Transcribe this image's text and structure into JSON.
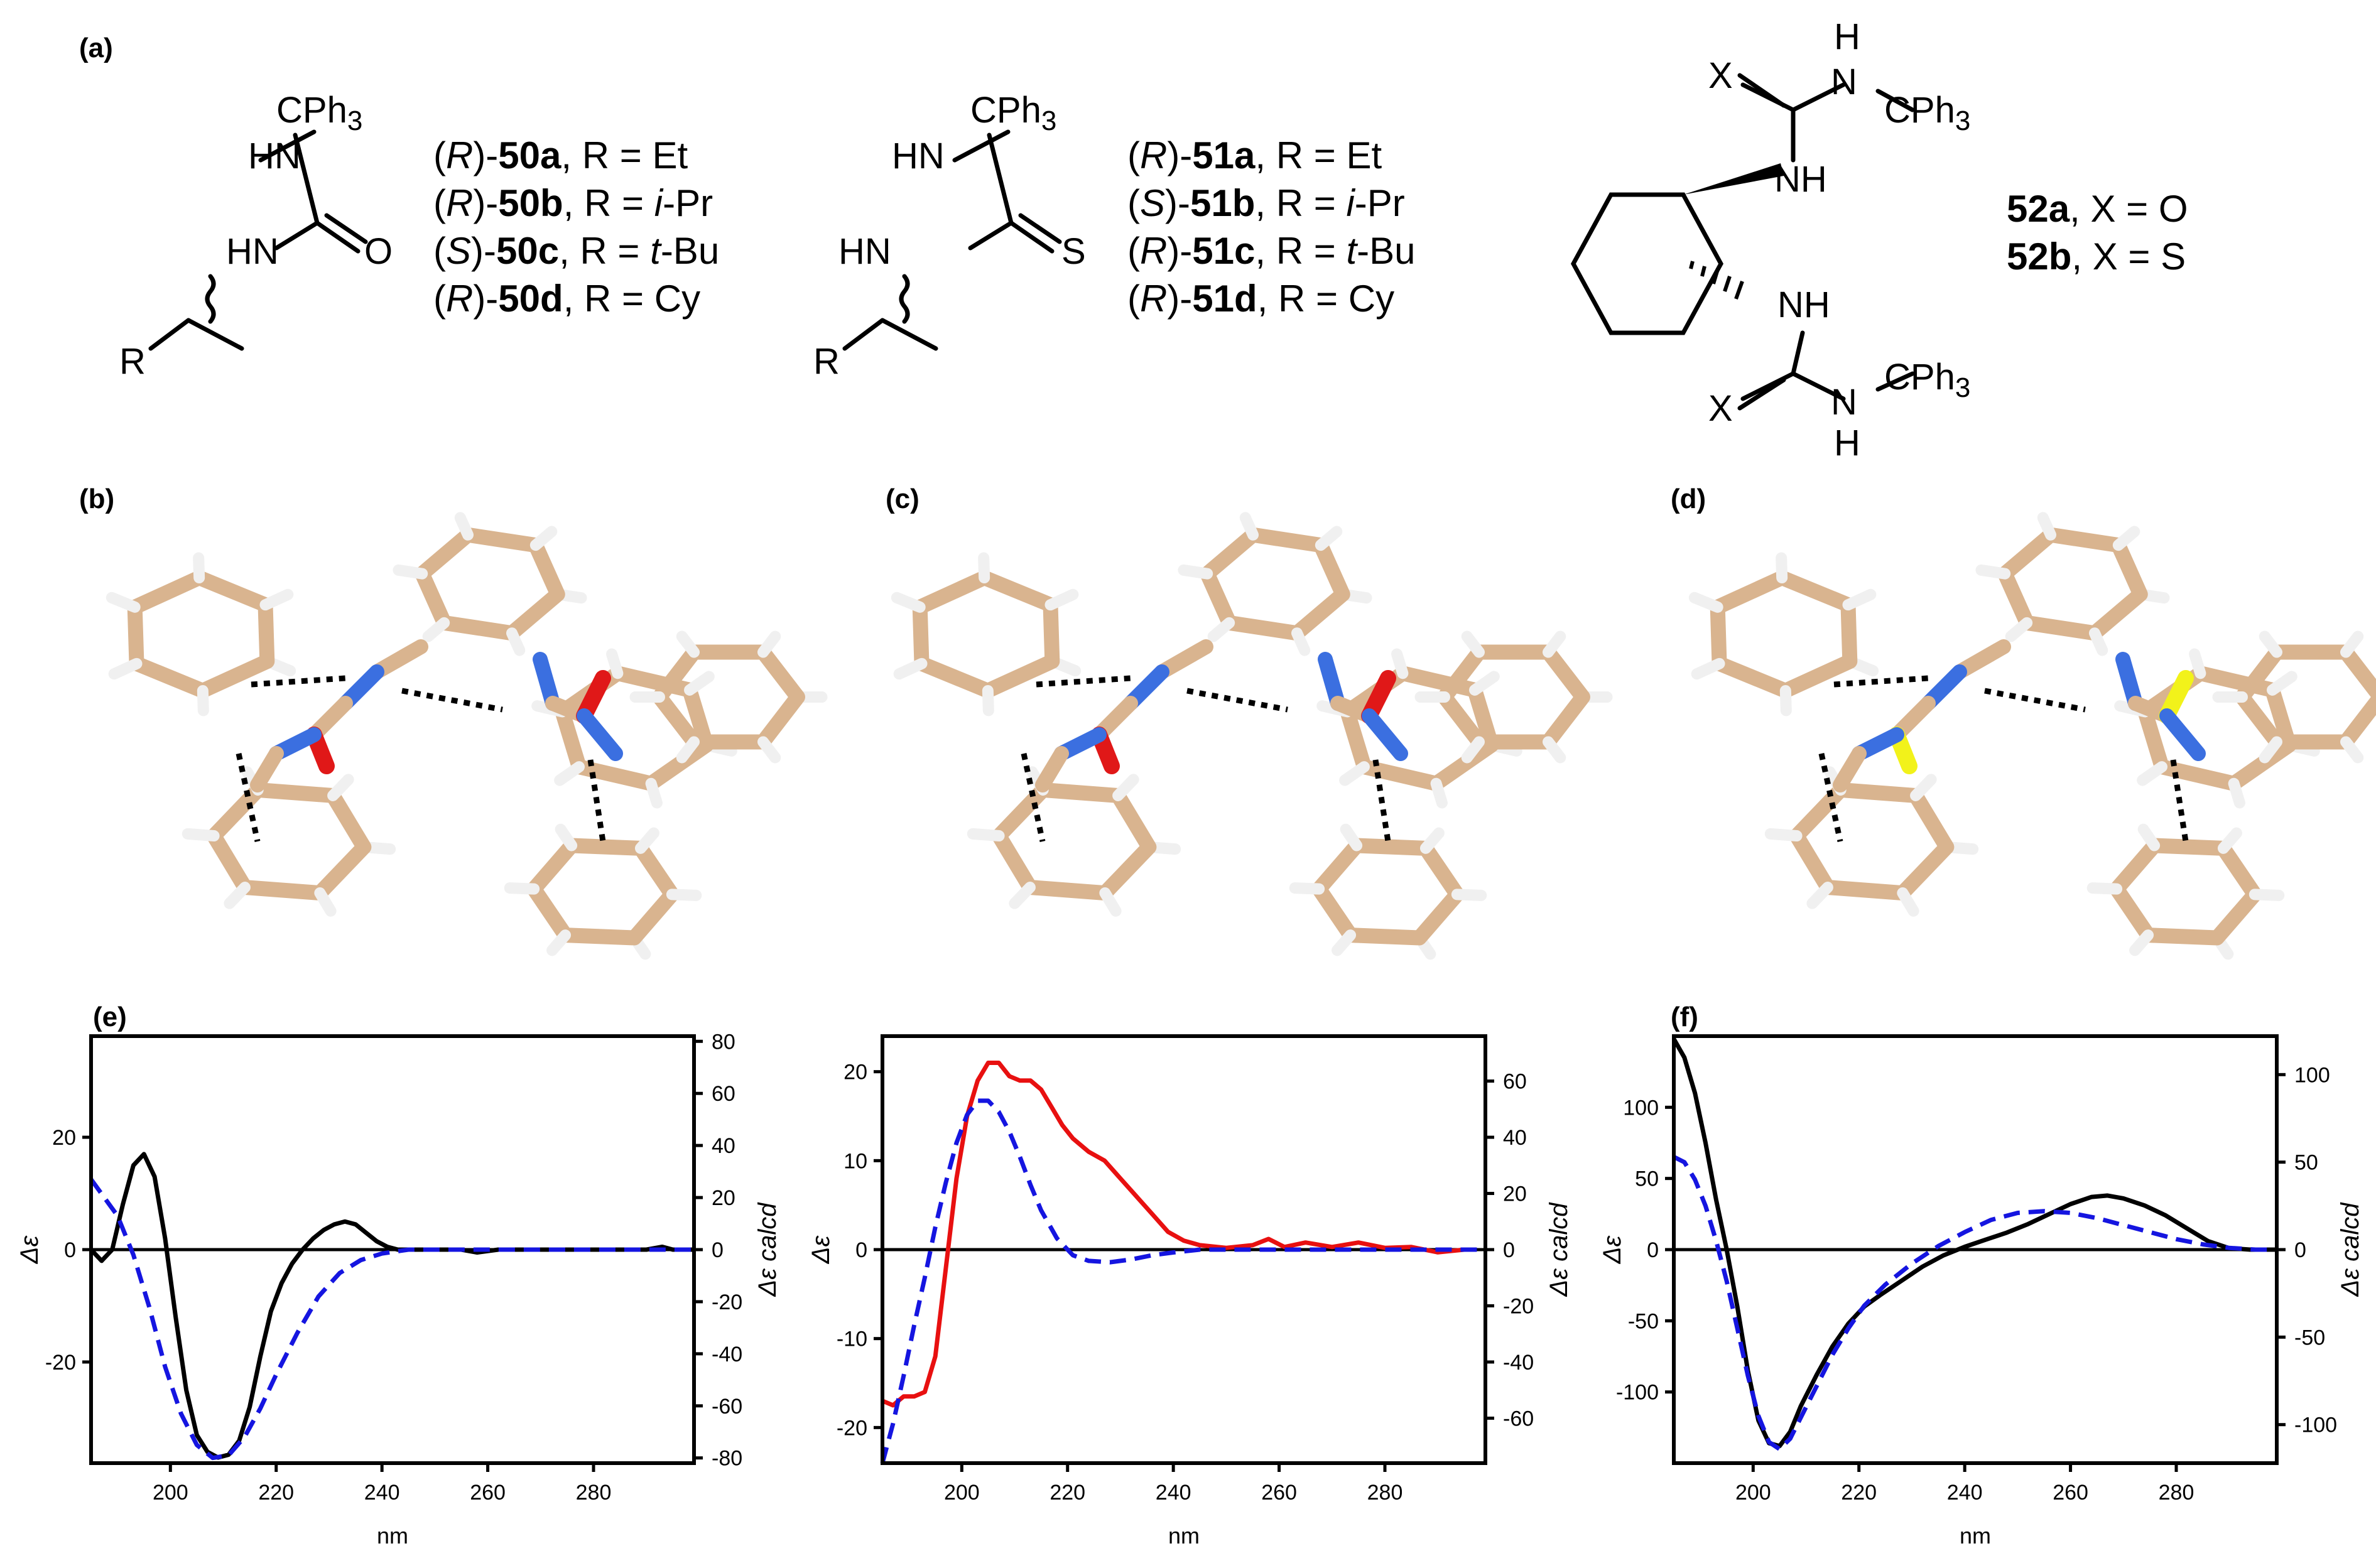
{
  "panels": {
    "a": "(a)",
    "b": "(b)",
    "c": "(c)",
    "d": "(d)",
    "e": "(e)",
    "f": "(f)"
  },
  "structure_a": {
    "atoms": {
      "cph3": "CPh3",
      "hn_top": "HN",
      "hn_bottom": "HN",
      "o": "O",
      "r": "R"
    },
    "compounds": [
      {
        "config": "R",
        "id": "50a",
        "rest": ", R = Et",
        "sub": ""
      },
      {
        "config": "R",
        "id": "50b",
        "rest": ", R = ",
        "sub": "i",
        "tail": "-Pr"
      },
      {
        "config": "S",
        "id": "50c",
        "rest": ", R = ",
        "sub": "t",
        "tail": "-Bu"
      },
      {
        "config": "R",
        "id": "50d",
        "rest": ", R = Cy",
        "sub": ""
      }
    ]
  },
  "structure_b": {
    "atoms": {
      "cph3": "CPh3",
      "hn_top": "HN",
      "hn_bottom": "HN",
      "s": "S",
      "r": "R"
    },
    "compounds": [
      {
        "config": "R",
        "id": "51a",
        "rest": ", R = Et",
        "sub": ""
      },
      {
        "config": "S",
        "id": "51b",
        "rest": ", R = ",
        "sub": "i",
        "tail": "-Pr"
      },
      {
        "config": "R",
        "id": "51c",
        "rest": ", R = ",
        "sub": "t",
        "tail": "-Bu"
      },
      {
        "config": "R",
        "id": "51d",
        "rest": ", R = Cy",
        "sub": ""
      }
    ]
  },
  "structure_c": {
    "atoms": {
      "h_top": "H",
      "n_top": "N",
      "cph3_top": "CPh3",
      "x_top": "X",
      "nh_top": "NH",
      "nh_bottom": "NH",
      "x_bottom": "X",
      "n_bottom": "N",
      "cph3_bottom": "CPh3",
      "h_bottom": "H"
    },
    "compounds": [
      {
        "id": "52a",
        "rest": ", X = O"
      },
      {
        "id": "52b",
        "rest": ", X = S"
      }
    ]
  },
  "colors": {
    "carbon": "#d9b48f",
    "nitrogen": "#3b6fe0",
    "oxygen": "#e01818",
    "sulfur": "#f2f21a",
    "hydrogen": "#f0f0f0",
    "exp_black": "#000000",
    "exp_red": "#e81010",
    "calc_blue": "#1515e0"
  },
  "chart_data": [
    {
      "type": "line",
      "panel": "(e)",
      "xlabel": "nm",
      "ylabel": "Δε",
      "y2label": "Δε calcd",
      "xlim": [
        185,
        299
      ],
      "ylim": [
        -38,
        38
      ],
      "y2lim": [
        -82,
        82
      ],
      "xticks": [
        200,
        220,
        240,
        260,
        280
      ],
      "yticks": [
        -20,
        0,
        20
      ],
      "y2ticks": [
        -80,
        -60,
        -40,
        -20,
        0,
        20,
        40,
        60,
        80
      ],
      "series": [
        {
          "axis": "left",
          "color": "#000000",
          "dash": false,
          "x": [
            185,
            187,
            189,
            191,
            193,
            195,
            197,
            199,
            201,
            203,
            205,
            207,
            209,
            211,
            213,
            215,
            217,
            219,
            221,
            223,
            225,
            227,
            229,
            231,
            233,
            235,
            237,
            239,
            241,
            243,
            245,
            250,
            255,
            258,
            262,
            270,
            280,
            285,
            290,
            293,
            295,
            299
          ],
          "y": [
            0,
            -2,
            0,
            8,
            15,
            17,
            13,
            2,
            -12,
            -25,
            -33,
            -36,
            -37,
            -36.5,
            -34,
            -28,
            -19,
            -11,
            -6,
            -2.5,
            0,
            2,
            3.5,
            4.5,
            5,
            4.5,
            3,
            1.5,
            0.5,
            0,
            0,
            0,
            0,
            -0.5,
            0,
            0,
            0,
            0,
            0,
            0.5,
            0,
            0
          ]
        },
        {
          "axis": "right",
          "color": "#1515e0",
          "dash": true,
          "x": [
            185,
            190,
            193,
            196,
            199,
            202,
            205,
            208,
            211,
            214,
            217,
            220,
            224,
            228,
            232,
            236,
            240,
            245,
            250,
            260,
            270,
            280,
            290,
            299
          ],
          "y": [
            27,
            13,
            -2,
            -22,
            -45,
            -63,
            -75,
            -80,
            -79,
            -72,
            -61,
            -48,
            -32,
            -18,
            -9,
            -4,
            -1.5,
            0,
            0,
            0,
            0,
            0,
            0,
            0
          ]
        }
      ]
    },
    {
      "type": "line",
      "panel": "",
      "xlabel": "nm",
      "ylabel": "Δε",
      "y2label": "Δε calcd",
      "xlim": [
        185,
        299
      ],
      "ylim": [
        -24,
        24
      ],
      "y2lim": [
        -76,
        76
      ],
      "xticks": [
        200,
        220,
        240,
        260,
        280
      ],
      "yticks": [
        -20,
        -10,
        0,
        10,
        20
      ],
      "y2ticks": [
        -60,
        -40,
        -20,
        0,
        20,
        40,
        60
      ],
      "series": [
        {
          "axis": "left",
          "color": "#e81010",
          "dash": false,
          "x": [
            185,
            187,
            189,
            191,
            193,
            195,
            197,
            199,
            201,
            203,
            205,
            207,
            209,
            211,
            213,
            215,
            217,
            219,
            221,
            224,
            227,
            230,
            233,
            236,
            239,
            242,
            245,
            250,
            255,
            258,
            261,
            265,
            270,
            275,
            280,
            285,
            290,
            295
          ],
          "y": [
            -17,
            -17.5,
            -16.5,
            -16.5,
            -16,
            -12,
            -2,
            8,
            15,
            19,
            21,
            21,
            19.5,
            19,
            19,
            18,
            16,
            14,
            12.5,
            11,
            10,
            8,
            6,
            4,
            2,
            1,
            0.5,
            0.2,
            0.5,
            1.2,
            0.3,
            0.8,
            0.3,
            0.8,
            0.2,
            0.3,
            -0.3,
            0
          ]
        },
        {
          "axis": "right",
          "color": "#1515e0",
          "dash": true,
          "x": [
            185,
            187,
            189,
            191,
            193,
            195,
            197,
            199,
            201,
            203,
            205,
            207,
            209,
            211,
            213,
            215,
            218,
            221,
            224,
            228,
            232,
            236,
            240,
            245,
            250,
            260,
            270,
            280,
            290,
            299
          ],
          "y": [
            -76,
            -62,
            -45,
            -27,
            -10,
            8,
            24,
            38,
            48,
            53,
            53,
            49,
            42,
            33,
            23,
            14,
            4,
            -2,
            -4,
            -4.5,
            -3.5,
            -2,
            -1,
            0,
            0,
            0,
            0,
            0,
            0,
            0
          ]
        }
      ]
    },
    {
      "type": "line",
      "panel": "(f)",
      "xlabel": "nm",
      "ylabel": "Δε",
      "y2label": "Δε calcd",
      "xlim": [
        185,
        299
      ],
      "ylim": [
        -150,
        150
      ],
      "y2lim": [
        -122,
        122
      ],
      "xticks": [
        200,
        220,
        240,
        260,
        280
      ],
      "yticks": [
        -100,
        -50,
        0,
        50,
        100
      ],
      "y2ticks": [
        -100,
        -50,
        0,
        50,
        100
      ],
      "series": [
        {
          "axis": "left",
          "color": "#000000",
          "dash": false,
          "x": [
            185,
            187,
            189,
            191,
            193,
            195,
            197,
            199,
            201,
            203,
            205,
            207,
            209,
            212,
            215,
            218,
            221,
            224,
            228,
            232,
            236,
            240,
            244,
            248,
            252,
            256,
            260,
            264,
            267,
            270,
            274,
            278,
            282,
            286,
            290,
            294,
            299
          ],
          "y": [
            148,
            135,
            110,
            75,
            35,
            0,
            -40,
            -85,
            -120,
            -136,
            -138,
            -128,
            -110,
            -88,
            -68,
            -52,
            -40,
            -32,
            -22,
            -12,
            -4,
            2,
            7,
            12,
            18,
            25,
            32,
            37,
            38,
            36,
            31,
            24,
            15,
            6,
            1,
            0,
            0
          ]
        },
        {
          "axis": "right",
          "color": "#1515e0",
          "dash": true,
          "x": [
            185,
            187,
            189,
            191,
            193,
            195,
            197,
            199,
            201,
            203,
            205,
            207,
            209,
            212,
            215,
            218,
            221,
            225,
            230,
            235,
            240,
            245,
            250,
            255,
            260,
            265,
            270,
            275,
            280,
            285,
            290,
            295,
            299
          ],
          "y": [
            53,
            50,
            40,
            25,
            5,
            -18,
            -45,
            -72,
            -95,
            -110,
            -114,
            -108,
            -96,
            -78,
            -60,
            -45,
            -32,
            -20,
            -8,
            2,
            10,
            17,
            21,
            22,
            21,
            18,
            14,
            10,
            6,
            3,
            1,
            0,
            0
          ]
        }
      ]
    }
  ]
}
